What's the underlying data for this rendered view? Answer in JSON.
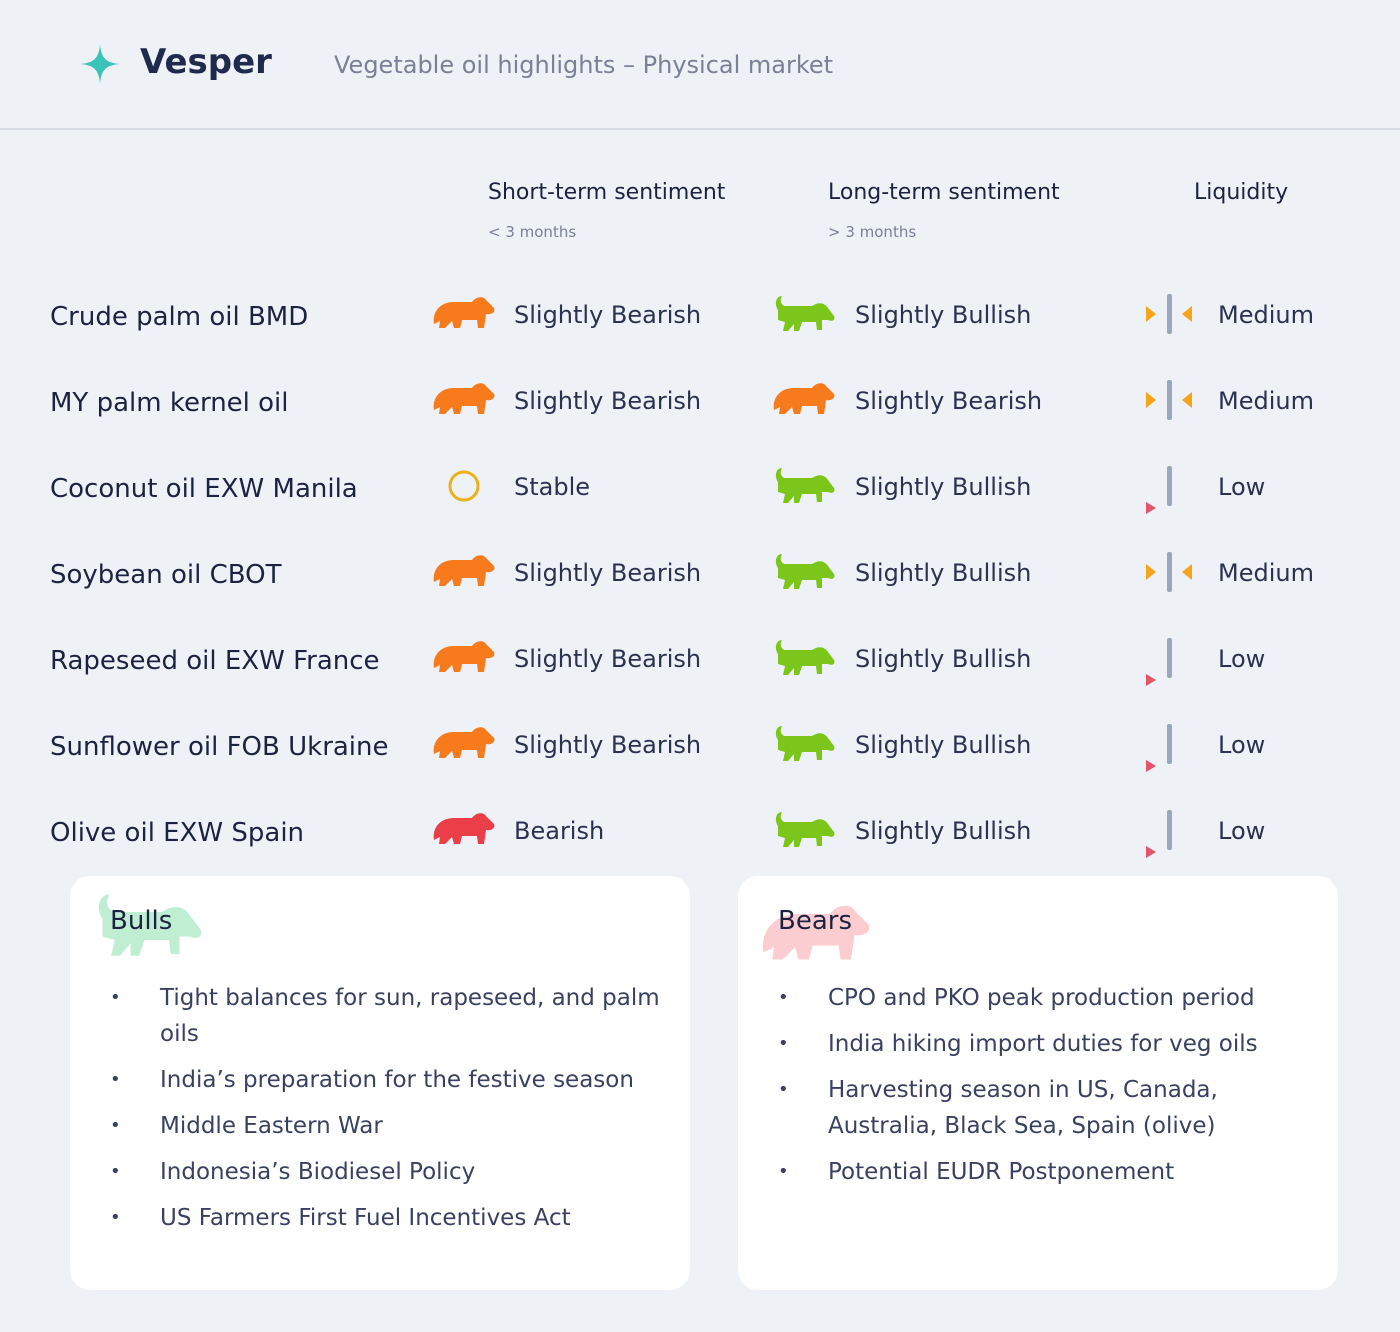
{
  "header": {
    "brand": "Vesper",
    "subtitle": "Vegetable oil highlights – Physical market"
  },
  "columns": {
    "short_term": {
      "title": "Short-term sentiment",
      "note": "< 3 months"
    },
    "long_term": {
      "title": "Long-term sentiment",
      "note": "> 3 months"
    },
    "liquidity": {
      "title": "Liquidity"
    }
  },
  "rows": [
    {
      "name": "Crude palm oil BMD",
      "short_term": "Slightly Bearish",
      "long_term": "Slightly Bullish",
      "liquidity": "Medium"
    },
    {
      "name": "MY palm kernel oil",
      "short_term": "Slightly Bearish",
      "long_term": "Slightly Bearish",
      "liquidity": "Medium"
    },
    {
      "name": "Coconut oil EXW Manila",
      "short_term": "Stable",
      "long_term": "Slightly Bullish",
      "liquidity": "Low"
    },
    {
      "name": "Soybean oil CBOT",
      "short_term": "Slightly Bearish",
      "long_term": "Slightly Bullish",
      "liquidity": "Medium"
    },
    {
      "name": "Rapeseed oil EXW France",
      "short_term": "Slightly Bearish",
      "long_term": "Slightly Bullish",
      "liquidity": "Low"
    },
    {
      "name": "Sunflower oil FOB Ukraine",
      "short_term": "Slightly Bearish",
      "long_term": "Slightly Bullish",
      "liquidity": "Low"
    },
    {
      "name": "Olive oil EXW Spain",
      "short_term": "Bearish",
      "long_term": "Slightly Bullish",
      "liquidity": "Low"
    }
  ],
  "bulls": {
    "title": "Bulls",
    "items": [
      "Tight balances for sun, rapeseed, and palm oils",
      "India’s preparation for the festive season",
      "Middle Eastern War",
      "Indonesia’s Biodiesel Policy",
      "US Farmers First Fuel Incentives Act"
    ]
  },
  "bears": {
    "title": "Bears",
    "items": [
      "CPO and PKO peak production period",
      "India hiking import duties for veg oils",
      "Harvesting season in US, Canada, Australia, Black Sea, Spain (olive)",
      "Potential EUDR Postponement"
    ]
  }
}
